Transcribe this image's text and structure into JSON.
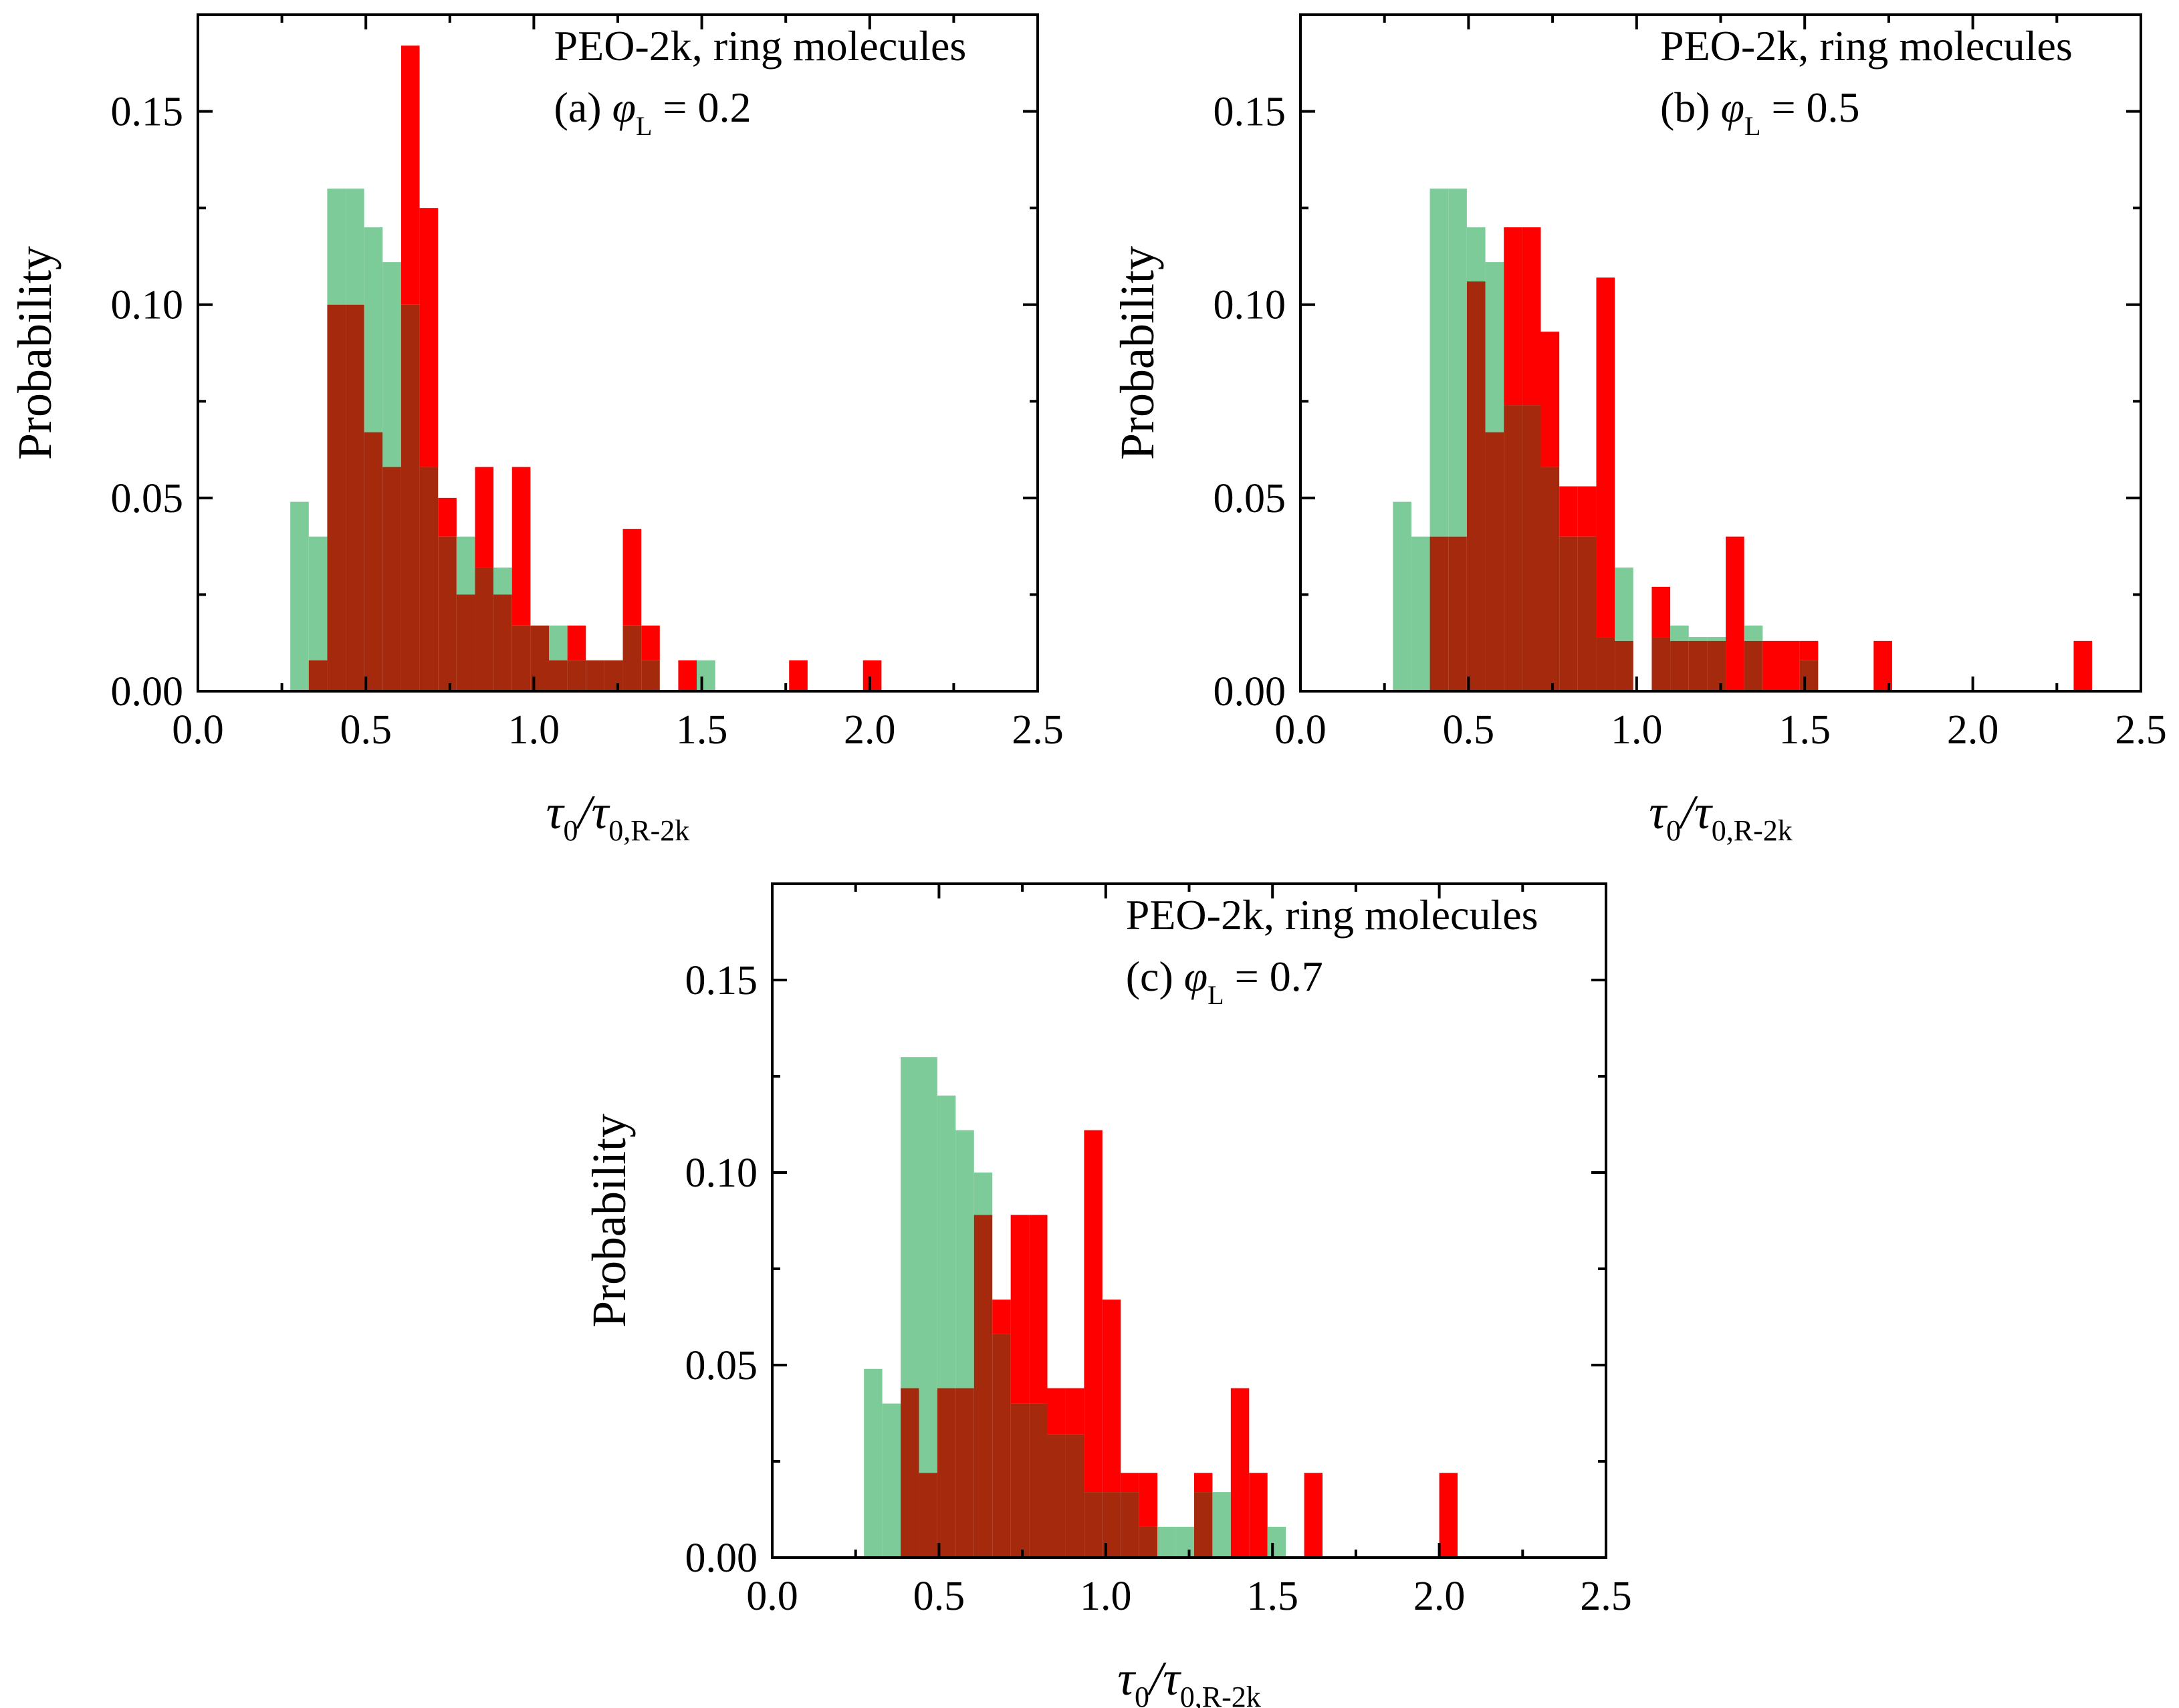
{
  "colors": {
    "series_a": "#7ecb9a",
    "series_b": "#ff0000",
    "overlap": "#a52a0d",
    "axis": "#000000"
  },
  "chart_data": [
    {
      "type": "bar",
      "panel": "a",
      "title_line1": "PEO-2k, ring molecules",
      "title_line2_prefix": "(a) ",
      "title_line2_symbol": "φ",
      "title_line2_sub": "L",
      "title_line2_suffix": " = 0.2",
      "ylabel": "Probability",
      "xlabel_main1": "τ",
      "xlabel_sub1": "0",
      "xlabel_slash": "/τ",
      "xlabel_sub2": "0,R-2k",
      "xlim": [
        0.0,
        2.5
      ],
      "ylim": [
        0.0,
        0.175
      ],
      "xticks": [
        "0.0",
        "0.5",
        "1.0",
        "1.5",
        "2.0",
        "2.5"
      ],
      "yticks": [
        "0.00",
        "0.05",
        "0.10",
        "0.15"
      ],
      "bin_width": 0.055,
      "series": [
        {
          "name": "green",
          "bins": [
            [
              0.275,
              0.049
            ],
            [
              0.33,
              0.04
            ],
            [
              0.385,
              0.13
            ],
            [
              0.44,
              0.13
            ],
            [
              0.495,
              0.12
            ],
            [
              0.55,
              0.111
            ],
            [
              0.605,
              0.1
            ],
            [
              0.66,
              0.058
            ],
            [
              0.715,
              0.04
            ],
            [
              0.77,
              0.04
            ],
            [
              0.825,
              0.032
            ],
            [
              0.88,
              0.032
            ],
            [
              0.935,
              0.017
            ],
            [
              0.99,
              0.017
            ],
            [
              1.045,
              0.017
            ],
            [
              1.1,
              0.008
            ],
            [
              1.155,
              0.008
            ],
            [
              1.21,
              0.008
            ],
            [
              1.265,
              0.017
            ],
            [
              1.32,
              0.008
            ],
            [
              1.485,
              0.008
            ]
          ]
        },
        {
          "name": "red",
          "bins": [
            [
              0.33,
              0.008
            ],
            [
              0.385,
              0.1
            ],
            [
              0.44,
              0.1
            ],
            [
              0.495,
              0.067
            ],
            [
              0.55,
              0.058
            ],
            [
              0.605,
              0.167
            ],
            [
              0.66,
              0.125
            ],
            [
              0.715,
              0.05
            ],
            [
              0.77,
              0.025
            ],
            [
              0.825,
              0.058
            ],
            [
              0.88,
              0.025
            ],
            [
              0.935,
              0.058
            ],
            [
              0.99,
              0.017
            ],
            [
              1.045,
              0.008
            ],
            [
              1.1,
              0.017
            ],
            [
              1.155,
              0.008
            ],
            [
              1.21,
              0.008
            ],
            [
              1.265,
              0.042
            ],
            [
              1.32,
              0.017
            ],
            [
              1.43,
              0.008
            ],
            [
              1.76,
              0.008
            ],
            [
              1.98,
              0.008
            ]
          ]
        }
      ]
    },
    {
      "type": "bar",
      "panel": "b",
      "title_line1": "PEO-2k, ring molecules",
      "title_line2_prefix": "(b) ",
      "title_line2_symbol": "φ",
      "title_line2_sub": "L",
      "title_line2_suffix": " = 0.5",
      "ylabel": "Probability",
      "xlabel_main1": "τ",
      "xlabel_sub1": "0",
      "xlabel_slash": "/τ",
      "xlabel_sub2": "0,R-2k",
      "xlim": [
        0.0,
        2.5
      ],
      "ylim": [
        0.0,
        0.175
      ],
      "xticks": [
        "0.0",
        "0.5",
        "1.0",
        "1.5",
        "2.0",
        "2.5"
      ],
      "yticks": [
        "0.00",
        "0.05",
        "0.10",
        "0.15"
      ],
      "bin_width": 0.055,
      "series": [
        {
          "name": "green",
          "bins": [
            [
              0.275,
              0.049
            ],
            [
              0.33,
              0.04
            ],
            [
              0.385,
              0.13
            ],
            [
              0.44,
              0.13
            ],
            [
              0.495,
              0.12
            ],
            [
              0.55,
              0.111
            ],
            [
              0.605,
              0.074
            ],
            [
              0.66,
              0.074
            ],
            [
              0.715,
              0.058
            ],
            [
              0.77,
              0.04
            ],
            [
              0.825,
              0.04
            ],
            [
              0.88,
              0.014
            ],
            [
              0.935,
              0.032
            ],
            [
              1.045,
              0.014
            ],
            [
              1.1,
              0.017
            ],
            [
              1.155,
              0.014
            ],
            [
              1.21,
              0.014
            ],
            [
              1.32,
              0.017
            ],
            [
              1.485,
              0.008
            ]
          ]
        },
        {
          "name": "red",
          "bins": [
            [
              0.385,
              0.04
            ],
            [
              0.44,
              0.04
            ],
            [
              0.495,
              0.106
            ],
            [
              0.55,
              0.067
            ],
            [
              0.605,
              0.12
            ],
            [
              0.66,
              0.12
            ],
            [
              0.715,
              0.093
            ],
            [
              0.77,
              0.053
            ],
            [
              0.825,
              0.053
            ],
            [
              0.88,
              0.107
            ],
            [
              0.935,
              0.013
            ],
            [
              1.045,
              0.027
            ],
            [
              1.1,
              0.013
            ],
            [
              1.155,
              0.013
            ],
            [
              1.21,
              0.013
            ],
            [
              1.265,
              0.04
            ],
            [
              1.32,
              0.013
            ],
            [
              1.375,
              0.013
            ],
            [
              1.43,
              0.013
            ],
            [
              1.485,
              0.013
            ],
            [
              1.705,
              0.013
            ],
            [
              2.3,
              0.013
            ]
          ]
        }
      ]
    },
    {
      "type": "bar",
      "panel": "c",
      "title_line1": "PEO-2k, ring molecules",
      "title_line2_prefix": "(c) ",
      "title_line2_symbol": "φ",
      "title_line2_sub": "L",
      "title_line2_suffix": " = 0.7",
      "ylabel": "Probability",
      "xlabel_main1": "τ",
      "xlabel_sub1": "0",
      "xlabel_slash": "/τ",
      "xlabel_sub2": "0,R-2k",
      "xlim": [
        0.0,
        2.5
      ],
      "ylim": [
        0.0,
        0.175
      ],
      "xticks": [
        "0.0",
        "0.5",
        "1.0",
        "1.5",
        "2.0",
        "2.5"
      ],
      "yticks": [
        "0.00",
        "0.05",
        "0.10",
        "0.15"
      ],
      "bin_width": 0.055,
      "series": [
        {
          "name": "green",
          "bins": [
            [
              0.275,
              0.049
            ],
            [
              0.33,
              0.04
            ],
            [
              0.385,
              0.13
            ],
            [
              0.44,
              0.13
            ],
            [
              0.495,
              0.12
            ],
            [
              0.55,
              0.111
            ],
            [
              0.605,
              0.1
            ],
            [
              0.66,
              0.058
            ],
            [
              0.715,
              0.04
            ],
            [
              0.77,
              0.04
            ],
            [
              0.825,
              0.032
            ],
            [
              0.88,
              0.032
            ],
            [
              0.935,
              0.017
            ],
            [
              0.99,
              0.017
            ],
            [
              1.045,
              0.017
            ],
            [
              1.1,
              0.008
            ],
            [
              1.155,
              0.008
            ],
            [
              1.21,
              0.008
            ],
            [
              1.265,
              0.017
            ],
            [
              1.32,
              0.017
            ],
            [
              1.485,
              0.008
            ]
          ]
        },
        {
          "name": "red",
          "bins": [
            [
              0.385,
              0.044
            ],
            [
              0.44,
              0.022
            ],
            [
              0.495,
              0.044
            ],
            [
              0.55,
              0.044
            ],
            [
              0.605,
              0.089
            ],
            [
              0.66,
              0.067
            ],
            [
              0.715,
              0.089
            ],
            [
              0.77,
              0.089
            ],
            [
              0.825,
              0.044
            ],
            [
              0.88,
              0.044
            ],
            [
              0.935,
              0.111
            ],
            [
              0.99,
              0.067
            ],
            [
              1.045,
              0.022
            ],
            [
              1.1,
              0.022
            ],
            [
              1.265,
              0.022
            ],
            [
              1.375,
              0.044
            ],
            [
              1.43,
              0.022
            ],
            [
              1.595,
              0.022
            ],
            [
              2.0,
              0.022
            ]
          ]
        }
      ]
    }
  ]
}
